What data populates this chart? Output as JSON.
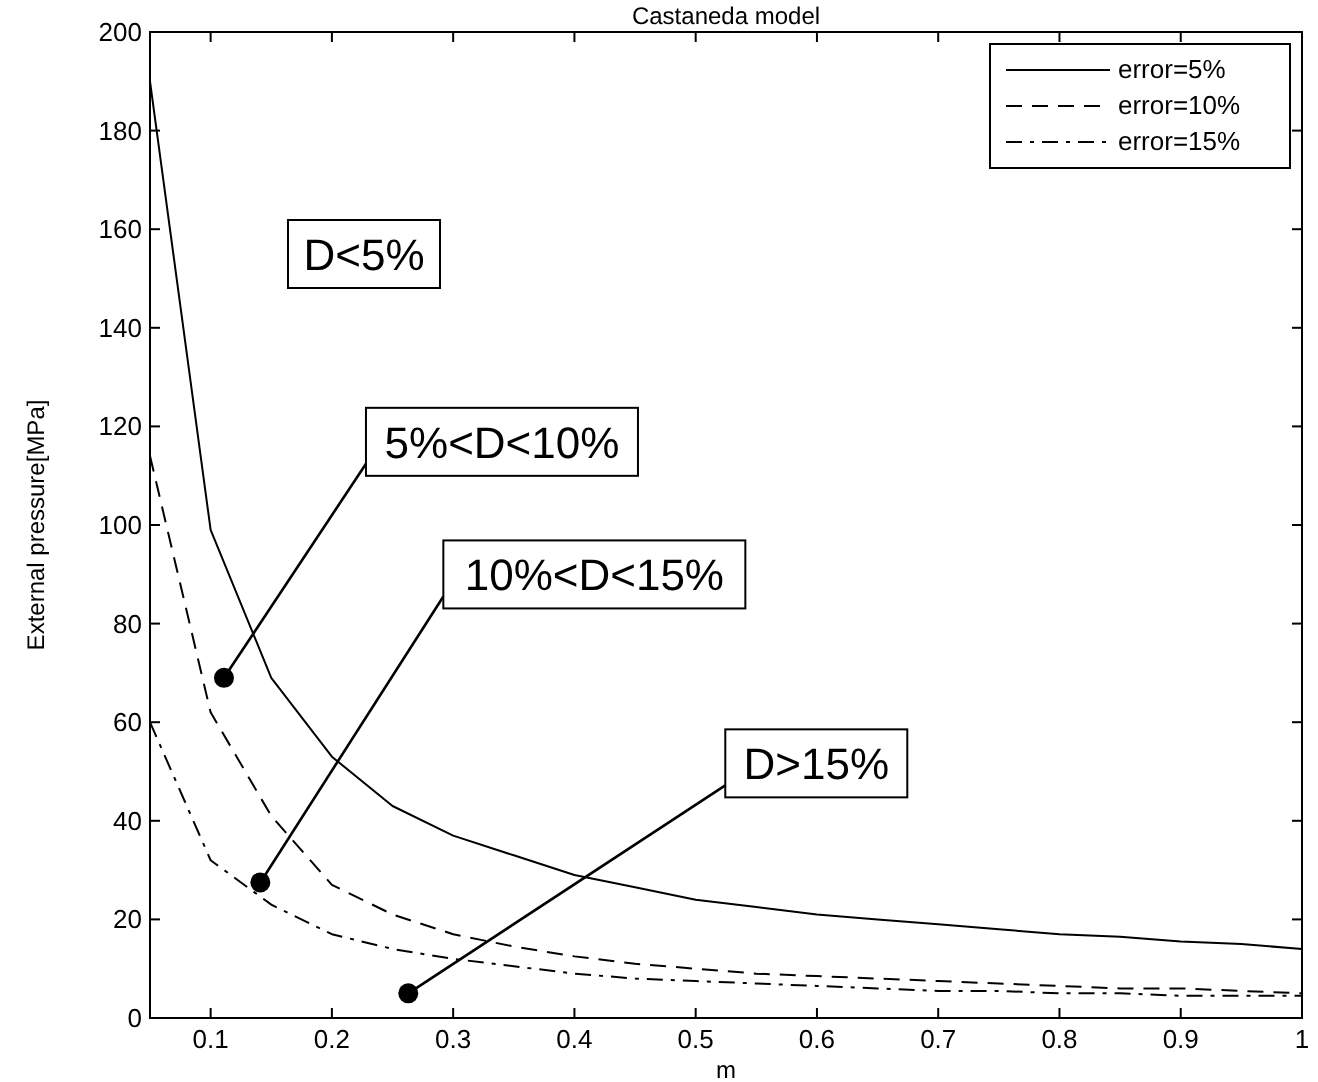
{
  "chart_data": {
    "type": "line",
    "title": "Castaneda model",
    "xlabel": "m",
    "ylabel": "External pressure[MPa]",
    "x": [
      0.05,
      0.1,
      0.15,
      0.2,
      0.25,
      0.3,
      0.35,
      0.4,
      0.45,
      0.5,
      0.55,
      0.6,
      0.65,
      0.7,
      0.75,
      0.8,
      0.85,
      0.9,
      0.95,
      1.0
    ],
    "series": [
      {
        "name": "error=5%",
        "color": "#000000",
        "line_style": "solid",
        "values": [
          190,
          99,
          69,
          53,
          43,
          37,
          33,
          29,
          26.5,
          24,
          22.5,
          21,
          20,
          19,
          18,
          17,
          16.5,
          15.5,
          15,
          14
        ]
      },
      {
        "name": "error=10%",
        "color": "#000000",
        "line_style": "dashed",
        "values": [
          114,
          62,
          41,
          27,
          21,
          17,
          14.5,
          12.5,
          11,
          10,
          9,
          8.5,
          8,
          7.5,
          7,
          6.5,
          6,
          6,
          5.5,
          5
        ]
      },
      {
        "name": "error=15%",
        "color": "#000000",
        "line_style": "dashdot",
        "values": [
          60,
          32,
          23,
          17,
          14,
          12,
          10.5,
          9,
          8,
          7.5,
          7,
          6.5,
          6,
          5.5,
          5.5,
          5,
          5,
          4.5,
          4.5,
          4.5
        ]
      }
    ],
    "xlim": [
      0.05,
      1
    ],
    "ylim": [
      0,
      200
    ],
    "xticks": [
      0.1,
      0.2,
      0.3,
      0.4,
      0.5,
      0.6,
      0.7,
      0.8,
      0.9,
      {
        "value": 1,
        "label": "1"
      }
    ],
    "yticks": [
      0,
      20,
      40,
      60,
      80,
      100,
      120,
      140,
      160,
      180,
      200
    ],
    "grid": false,
    "legend": "top right",
    "annotations": [
      "D<5%",
      {
        "text": "5%<D<10%",
        "x": 0.111,
        "y": 69
      },
      {
        "text": "10%<D<15%",
        "x": 0.141,
        "y": 27.5
      },
      {
        "text": "D>15%",
        "x": 0.263,
        "y": 5
      }
    ]
  }
}
